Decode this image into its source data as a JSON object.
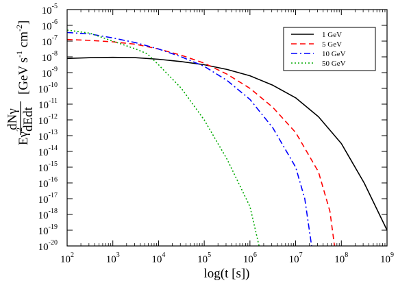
{
  "chart_data": {
    "type": "line",
    "x_scale": "log",
    "y_scale": "log",
    "xlim": [
      100,
      1000000000
    ],
    "ylim": [
      1e-20,
      1e-05
    ],
    "xlabel": "log(t [s])",
    "ylabel": {
      "prefix": "Eγ",
      "power": "2",
      "fraction_num": "dNγ",
      "fraction_den": "dEdt",
      "units": "[GeV s",
      "units_exp1": "-1",
      "units_mid": " cm",
      "units_exp2": "-2",
      "units_close": "]"
    },
    "x_ticks": [
      {
        "base": "10",
        "exp": "2",
        "value": 2
      },
      {
        "base": "10",
        "exp": "3",
        "value": 3
      },
      {
        "base": "10",
        "exp": "4",
        "value": 4
      },
      {
        "base": "10",
        "exp": "5",
        "value": 5
      },
      {
        "base": "10",
        "exp": "6",
        "value": 6
      },
      {
        "base": "10",
        "exp": "7",
        "value": 7
      },
      {
        "base": "10",
        "exp": "8",
        "value": 8
      },
      {
        "base": "10",
        "exp": "9",
        "value": 9
      }
    ],
    "y_ticks": [
      {
        "base": "10",
        "exp": "-5",
        "value": -5
      },
      {
        "base": "10",
        "exp": "-6",
        "value": -6
      },
      {
        "base": "10",
        "exp": "-7",
        "value": -7
      },
      {
        "base": "10",
        "exp": "-8",
        "value": -8
      },
      {
        "base": "10",
        "exp": "-9",
        "value": -9
      },
      {
        "base": "10",
        "exp": "-10",
        "value": -10
      },
      {
        "base": "10",
        "exp": "-11",
        "value": -11
      },
      {
        "base": "10",
        "exp": "-12",
        "value": -12
      },
      {
        "base": "10",
        "exp": "-13",
        "value": -13
      },
      {
        "base": "10",
        "exp": "-14",
        "value": -14
      },
      {
        "base": "10",
        "exp": "-15",
        "value": -15
      },
      {
        "base": "10",
        "exp": "-16",
        "value": -16
      },
      {
        "base": "10",
        "exp": "-17",
        "value": -17
      },
      {
        "base": "10",
        "exp": "-18",
        "value": -18
      },
      {
        "base": "10",
        "exp": "-19",
        "value": -19
      },
      {
        "base": "10",
        "exp": "-20",
        "value": -20
      }
    ],
    "legend_position": "top-right",
    "series": [
      {
        "name": "1 GeV",
        "color": "#000000",
        "dash": "solid",
        "points": [
          [
            2,
            -8.1
          ],
          [
            2.5,
            -8.05
          ],
          [
            3,
            -8.03
          ],
          [
            3.5,
            -8.05
          ],
          [
            4,
            -8.15
          ],
          [
            4.5,
            -8.3
          ],
          [
            5,
            -8.5
          ],
          [
            5.5,
            -8.8
          ],
          [
            6,
            -9.2
          ],
          [
            6.5,
            -9.8
          ],
          [
            7,
            -10.6
          ],
          [
            7.5,
            -11.8
          ],
          [
            8,
            -13.5
          ],
          [
            8.5,
            -16.0
          ],
          [
            9,
            -19.0
          ]
        ]
      },
      {
        "name": "5 GeV",
        "color": "#ff0000",
        "dash": "dashed",
        "points": [
          [
            2,
            -6.9
          ],
          [
            2.5,
            -6.95
          ],
          [
            3,
            -7.05
          ],
          [
            3.5,
            -7.2
          ],
          [
            4,
            -7.5
          ],
          [
            4.5,
            -7.9
          ],
          [
            5,
            -8.4
          ],
          [
            5.5,
            -9.1
          ],
          [
            6,
            -10.0
          ],
          [
            6.5,
            -11.2
          ],
          [
            7,
            -12.8
          ],
          [
            7.5,
            -15.3
          ],
          [
            7.75,
            -17.8
          ],
          [
            7.85,
            -20.0
          ]
        ]
      },
      {
        "name": "10 GeV",
        "color": "#0000ff",
        "dash": "dashdot",
        "points": [
          [
            2,
            -6.45
          ],
          [
            2.5,
            -6.55
          ],
          [
            3,
            -6.8
          ],
          [
            3.5,
            -7.1
          ],
          [
            4,
            -7.5
          ],
          [
            4.5,
            -8.0
          ],
          [
            5,
            -8.6
          ],
          [
            5.5,
            -9.5
          ],
          [
            6,
            -10.7
          ],
          [
            6.5,
            -12.5
          ],
          [
            7,
            -15.0
          ],
          [
            7.2,
            -17.0
          ],
          [
            7.35,
            -20.0
          ]
        ]
      },
      {
        "name": "50 GeV",
        "color": "#00aa00",
        "dash": "dotted",
        "points": [
          [
            2,
            -6.3
          ],
          [
            2.5,
            -6.5
          ],
          [
            3,
            -7.0
          ],
          [
            3.5,
            -7.5
          ],
          [
            3.75,
            -7.8
          ],
          [
            4,
            -8.5
          ],
          [
            4.5,
            -10.0
          ],
          [
            5,
            -12.0
          ],
          [
            5.5,
            -14.5
          ],
          [
            6,
            -17.5
          ],
          [
            6.2,
            -20.0
          ]
        ]
      }
    ]
  }
}
